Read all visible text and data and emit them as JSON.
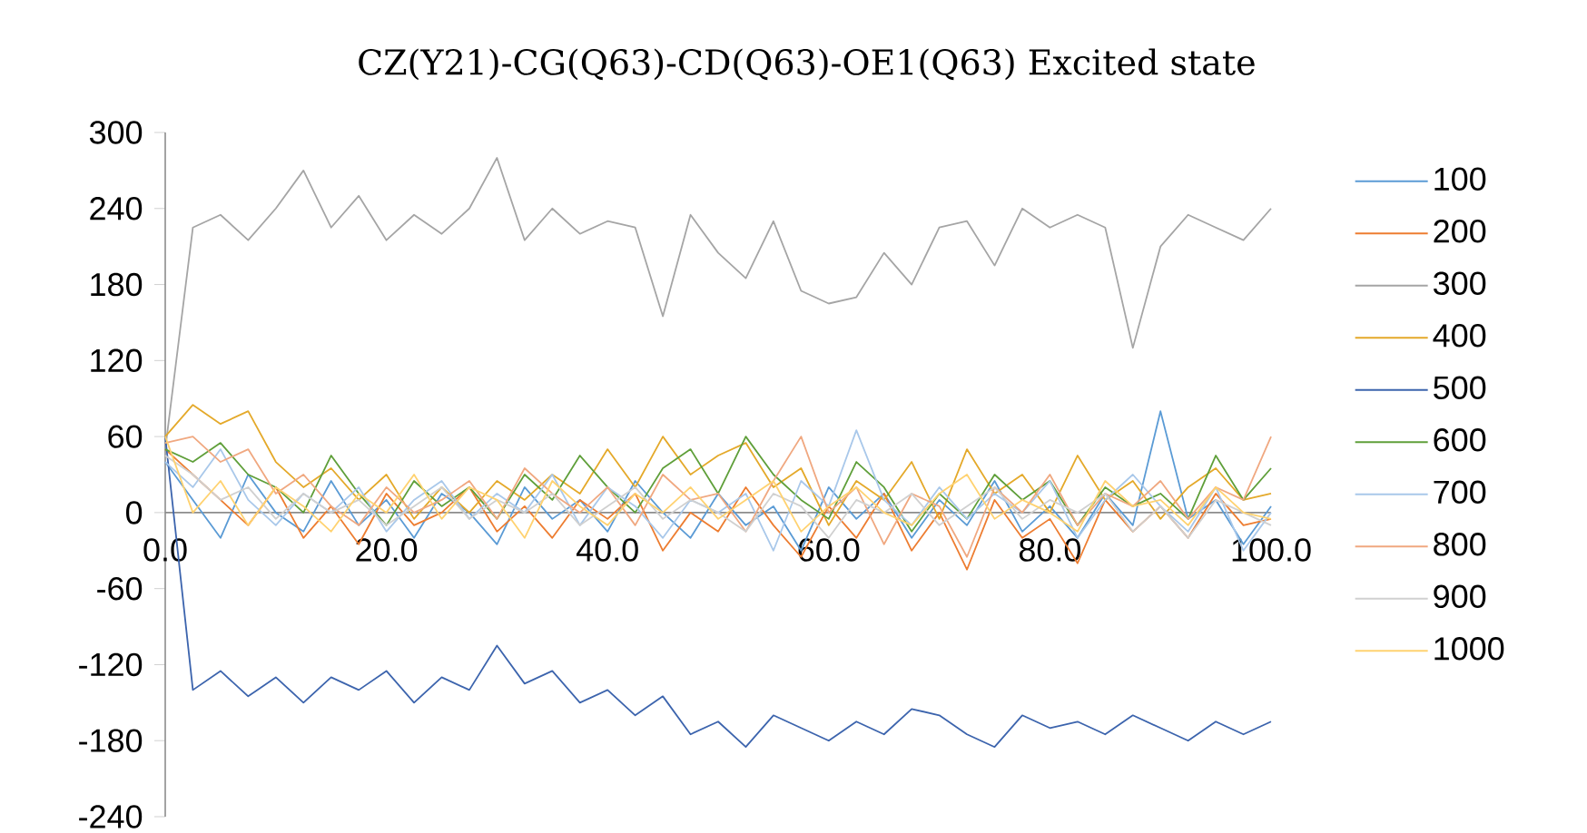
{
  "chart_data": {
    "type": "line",
    "title": "CZ(Y21)-CG(Q63)-CD(Q63)-OE1(Q63) Excited state",
    "x": [
      0,
      2.5,
      5,
      7.5,
      10,
      12.5,
      15,
      17.5,
      20,
      22.5,
      25,
      27.5,
      30,
      32.5,
      35,
      37.5,
      40,
      42.5,
      45,
      47.5,
      50,
      52.5,
      55,
      57.5,
      60,
      62.5,
      65,
      67.5,
      70,
      72.5,
      75,
      77.5,
      80,
      82.5,
      85,
      87.5,
      90,
      92.5,
      95,
      97.5,
      100
    ],
    "xlim": [
      0,
      100
    ],
    "xticks": [
      {
        "value": 0,
        "label": "0.0"
      },
      {
        "value": 20,
        "label": "20.0"
      },
      {
        "value": 40,
        "label": "40.0"
      },
      {
        "value": 60,
        "label": "60.0"
      },
      {
        "value": 80,
        "label": "80.0"
      },
      {
        "value": 100,
        "label": "100.0"
      }
    ],
    "ylim": [
      -240,
      300
    ],
    "yticks": [
      -240,
      -180,
      -120,
      -60,
      0,
      60,
      120,
      180,
      240,
      300
    ],
    "legend": "right",
    "grid": false,
    "series": [
      {
        "name": "100",
        "color": "#5b9bd5",
        "values": [
          40,
          10,
          -20,
          30,
          0,
          -15,
          25,
          -10,
          10,
          -20,
          15,
          0,
          -25,
          20,
          -5,
          10,
          -15,
          25,
          0,
          -20,
          15,
          -10,
          5,
          -30,
          20,
          -5,
          15,
          -20,
          10,
          -10,
          25,
          -15,
          5,
          -20,
          15,
          -10,
          80,
          -5,
          10,
          -25,
          5
        ]
      },
      {
        "name": "200",
        "color": "#ed7d31",
        "values": [
          50,
          30,
          10,
          -10,
          20,
          -20,
          5,
          -25,
          15,
          -10,
          0,
          20,
          -15,
          5,
          -20,
          10,
          -5,
          15,
          -30,
          0,
          -15,
          20,
          -10,
          -35,
          5,
          -20,
          15,
          -30,
          0,
          -45,
          10,
          -20,
          -5,
          -40,
          10,
          -15,
          5,
          -20,
          15,
          -10,
          -5
        ]
      },
      {
        "name": "300",
        "color": "#a5a5a5",
        "values": [
          50,
          225,
          235,
          215,
          240,
          270,
          225,
          250,
          215,
          235,
          220,
          240,
          280,
          215,
          240,
          220,
          230,
          225,
          155,
          235,
          205,
          185,
          230,
          175,
          165,
          170,
          205,
          180,
          225,
          230,
          195,
          240,
          225,
          235,
          225,
          130,
          210,
          235,
          225,
          215,
          240
        ]
      },
      {
        "name": "400",
        "color": "#e4a92a",
        "values": [
          60,
          85,
          70,
          80,
          40,
          20,
          35,
          10,
          30,
          -5,
          20,
          0,
          25,
          10,
          30,
          15,
          50,
          20,
          60,
          30,
          45,
          55,
          20,
          35,
          -10,
          25,
          10,
          40,
          -5,
          50,
          15,
          30,
          0,
          45,
          10,
          25,
          -5,
          20,
          35,
          10,
          15
        ]
      },
      {
        "name": "500",
        "color": "#3c64ad",
        "values": [
          60,
          -140,
          -125,
          -145,
          -130,
          -150,
          -130,
          -140,
          -125,
          -150,
          -130,
          -140,
          -105,
          -135,
          -125,
          -150,
          -140,
          -160,
          -145,
          -175,
          -165,
          -185,
          -160,
          -170,
          -180,
          -165,
          -175,
          -155,
          -160,
          -175,
          -185,
          -160,
          -170,
          -165,
          -175,
          -160,
          -170,
          -180,
          -165,
          -175,
          -165
        ]
      },
      {
        "name": "600",
        "color": "#5f9f3a",
        "values": [
          50,
          40,
          55,
          30,
          20,
          0,
          45,
          15,
          -10,
          25,
          5,
          20,
          -5,
          30,
          10,
          45,
          20,
          0,
          35,
          50,
          15,
          60,
          30,
          10,
          -5,
          40,
          20,
          -15,
          15,
          -5,
          30,
          10,
          25,
          -10,
          20,
          5,
          15,
          -5,
          45,
          10,
          35
        ]
      },
      {
        "name": "700",
        "color": "#a9c8ea",
        "values": [
          40,
          20,
          50,
          10,
          -10,
          15,
          0,
          20,
          -15,
          10,
          25,
          -5,
          15,
          0,
          30,
          -10,
          20,
          5,
          -20,
          10,
          0,
          15,
          -30,
          25,
          5,
          65,
          10,
          -10,
          20,
          -5,
          15,
          0,
          25,
          -20,
          10,
          30,
          5,
          -15,
          20,
          -30,
          0
        ]
      },
      {
        "name": "800",
        "color": "#f0a880",
        "values": [
          55,
          60,
          40,
          50,
          15,
          30,
          5,
          -10,
          20,
          0,
          10,
          25,
          -5,
          35,
          15,
          0,
          20,
          -10,
          30,
          10,
          15,
          -15,
          25,
          60,
          0,
          20,
          -25,
          15,
          5,
          -35,
          20,
          0,
          30,
          -10,
          15,
          5,
          25,
          -5,
          20,
          10,
          60
        ]
      },
      {
        "name": "900",
        "color": "#d0d0d0",
        "values": [
          45,
          30,
          10,
          20,
          -5,
          15,
          0,
          10,
          -10,
          5,
          20,
          -5,
          10,
          0,
          15,
          -10,
          5,
          20,
          -5,
          10,
          0,
          -15,
          15,
          5,
          -20,
          10,
          0,
          15,
          -10,
          5,
          20,
          -5,
          10,
          0,
          15,
          -15,
          5,
          -20,
          10,
          0,
          -10
        ]
      },
      {
        "name": "1000",
        "color": "#ffd270",
        "values": [
          60,
          0,
          25,
          -10,
          20,
          5,
          -15,
          15,
          0,
          30,
          -5,
          20,
          10,
          -20,
          25,
          5,
          -10,
          15,
          0,
          20,
          -5,
          10,
          25,
          -15,
          5,
          20,
          0,
          -10,
          15,
          30,
          -5,
          10,
          0,
          -15,
          25,
          5,
          10,
          -10,
          20,
          0,
          -5
        ]
      }
    ]
  }
}
